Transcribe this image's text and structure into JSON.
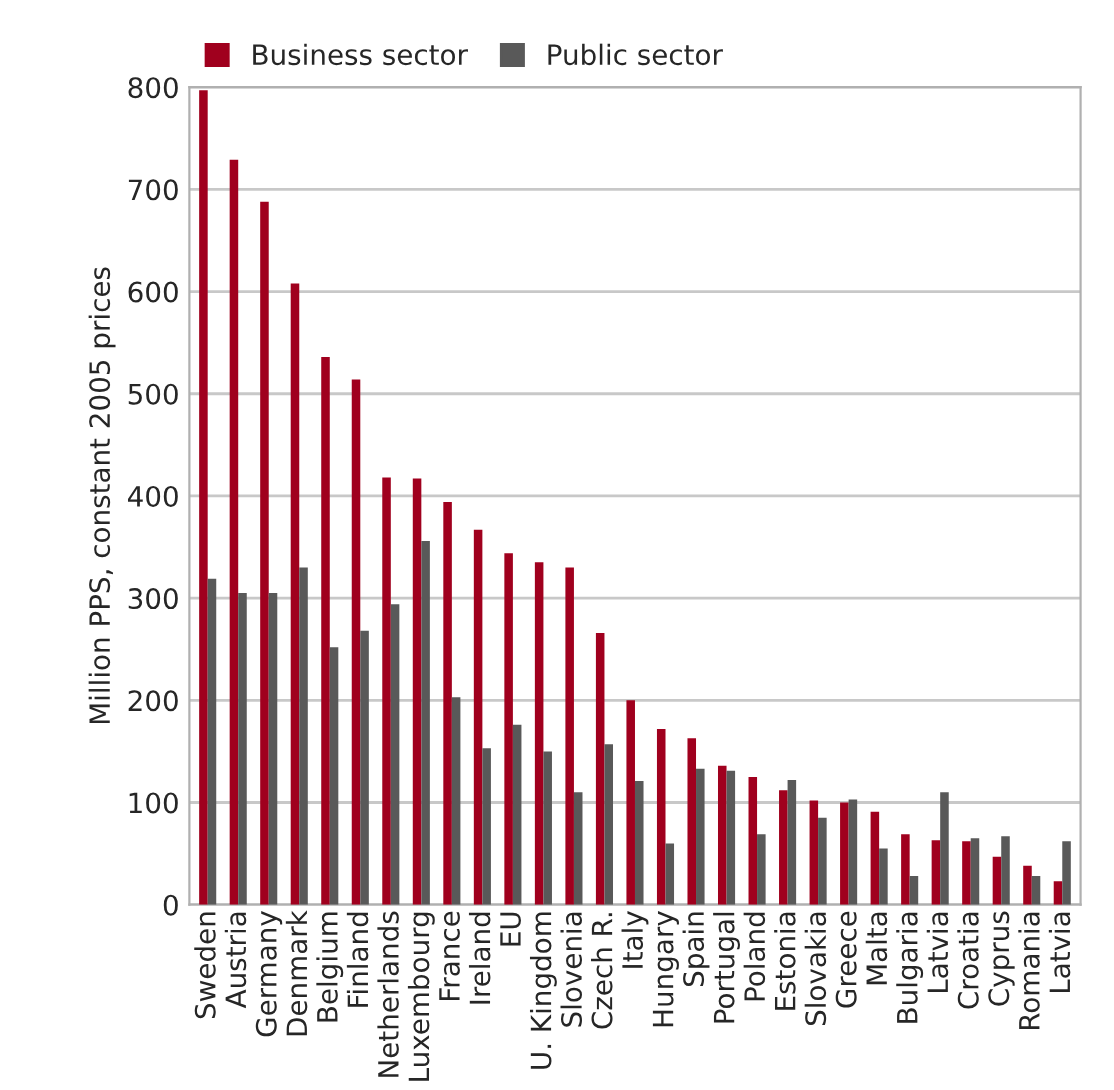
{
  "chart_data": {
    "type": "bar",
    "ylabel": "Million PPS, constant 2005 prices",
    "categories": [
      "Sweden",
      "Austria",
      "Germany",
      "Denmark",
      "Belgium",
      "Finland",
      "Netherlands",
      "Luxembourg",
      "France",
      "Ireland",
      "EU",
      "U. Kingdom",
      "Slovenia",
      "Czech R.",
      "Italy",
      "Hungary",
      "Spain",
      "Portugal",
      "Poland",
      "Estonia",
      "Slovakia",
      "Greece",
      "Malta",
      "Bulgaria",
      "Latvia",
      "Croatia",
      "Cyprus",
      "Romania",
      "Latvia"
    ],
    "series": [
      {
        "name": "Business sector",
        "color": "#a0001e",
        "values": [
          797,
          729,
          688,
          608,
          536,
          514,
          418,
          417,
          394,
          367,
          344,
          335,
          330,
          266,
          200,
          172,
          163,
          136,
          125,
          112,
          102,
          100,
          91,
          69,
          63,
          62,
          47,
          38,
          23
        ]
      },
      {
        "name": "Public sector",
        "color": "#595959",
        "values": [
          319,
          305,
          305,
          330,
          252,
          268,
          294,
          356,
          203,
          153,
          176,
          150,
          110,
          157,
          121,
          60,
          133,
          131,
          69,
          122,
          85,
          103,
          55,
          28,
          110,
          65,
          67,
          28,
          62
        ]
      }
    ],
    "ylim": [
      0,
      800
    ],
    "yticks": [
      0,
      100,
      200,
      300,
      400,
      500,
      600,
      700,
      800
    ],
    "grid": "y",
    "legend": "top left"
  }
}
